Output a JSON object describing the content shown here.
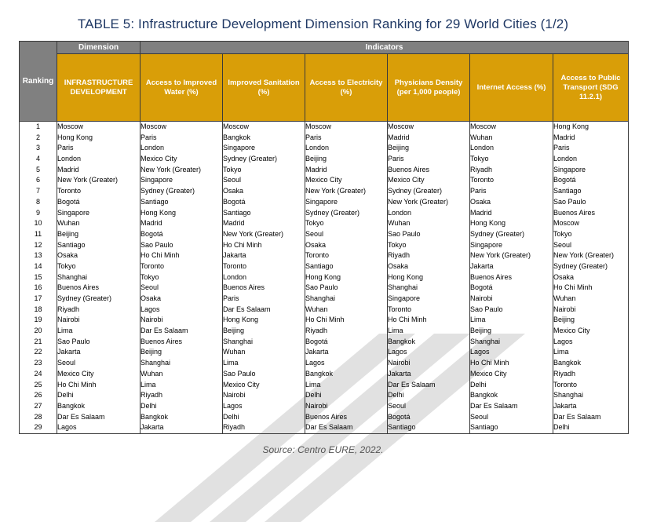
{
  "title": "TABLE 5: Infrastructure Development Dimension Ranking for 29 World Cities (1/2)",
  "header": {
    "ranking": "Ranking",
    "dimension": "Dimension",
    "indicators": "Indicators",
    "dimension_name": "INFRASTRUCTURE DEVELOPMENT",
    "columns": [
      "Access to Improved Water (%)",
      "Improved Sanitation (%)",
      "Access to Electricity (%)",
      "Physicians Density (per 1,000 people)",
      "Internet Access (%)",
      "Access to Public Transport (SDG 11.2.1)"
    ]
  },
  "ranks": [
    "1",
    "2",
    "3",
    "4",
    "5",
    "6",
    "7",
    "8",
    "9",
    "10",
    "11",
    "12",
    "13",
    "14",
    "15",
    "16",
    "17",
    "18",
    "19",
    "20",
    "21",
    "22",
    "23",
    "24",
    "25",
    "26",
    "27",
    "28",
    "29"
  ],
  "columns": [
    [
      "Moscow",
      "Hong Kong",
      "Paris",
      "London",
      "Madrid",
      "New York (Greater)",
      "Toronto",
      "Bogotá",
      "Singapore",
      "Wuhan",
      "Beijing",
      "Santiago",
      "Osaka",
      "Tokyo",
      "Shanghai",
      "Buenos Aires",
      "Sydney (Greater)",
      "Riyadh",
      "Nairobi",
      "Lima",
      "Sao Paulo",
      "Jakarta",
      "Seoul",
      "Mexico City",
      "Ho Chi Minh",
      "Delhi",
      "Bangkok",
      "Dar Es Salaam",
      "Lagos"
    ],
    [
      "Moscow",
      "Paris",
      "London",
      "Mexico City",
      "New York (Greater)",
      "Singapore",
      "Sydney (Greater)",
      "Santiago",
      "Hong Kong",
      "Madrid",
      "Bogotá",
      "Sao Paulo",
      "Ho Chi Minh",
      "Toronto",
      "Tokyo",
      "Seoul",
      "Osaka",
      "Lagos",
      "Nairobi",
      "Dar Es Salaam",
      "Buenos Aires",
      "Beijing",
      "Shanghai",
      "Wuhan",
      "Lima",
      "Riyadh",
      "Delhi",
      "Bangkok",
      "Jakarta"
    ],
    [
      "Moscow",
      "Bangkok",
      "Singapore",
      "Sydney (Greater)",
      "Tokyo",
      "Seoul",
      "Osaka",
      "Bogotá",
      "Santiago",
      "Madrid",
      "New York (Greater)",
      "Ho Chi Minh",
      "Jakarta",
      "Toronto",
      "London",
      "Buenos Aires",
      "Paris",
      "Dar Es Salaam",
      "Hong Kong",
      "Beijing",
      "Shanghai",
      "Wuhan",
      "Lima",
      "Sao Paulo",
      "Mexico City",
      "Nairobi",
      "Lagos",
      "Delhi",
      "Riyadh"
    ],
    [
      "Moscow",
      "Paris",
      "London",
      "Beijing",
      "Madrid",
      "Mexico City",
      "New York (Greater)",
      "Singapore",
      "Sydney (Greater)",
      "Tokyo",
      "Seoul",
      "Osaka",
      "Toronto",
      "Santiago",
      "Hong Kong",
      "Sao Paulo",
      "Shanghai",
      "Wuhan",
      "Ho Chi Minh",
      "Riyadh",
      "Bogotá",
      "Jakarta",
      "Lagos",
      "Bangkok",
      "Lima",
      "Delhi",
      "Nairobi",
      "Buenos Aires",
      "Dar Es Salaam"
    ],
    [
      "Moscow",
      "Madrid",
      "Beijing",
      "Paris",
      "Buenos Aires",
      "Mexico City",
      "Sydney (Greater)",
      "New York (Greater)",
      "London",
      "Wuhan",
      "Sao Paulo",
      "Tokyo",
      "Riyadh",
      "Osaka",
      "Hong Kong",
      "Shanghai",
      "Singapore",
      "Toronto",
      "Ho Chi Minh",
      "Lima",
      "Bangkok",
      "Lagos",
      "Nairobi",
      "Jakarta",
      "Dar Es Salaam",
      "Delhi",
      "Seoul",
      "Bogotá",
      "Santiago"
    ],
    [
      "Moscow",
      "Wuhan",
      "London",
      "Tokyo",
      "Riyadh",
      "Toronto",
      "Paris",
      "Osaka",
      "Madrid",
      "Hong Kong",
      "Sydney (Greater)",
      "Singapore",
      "New York (Greater)",
      "Jakarta",
      "Buenos Aires",
      "Bogotá",
      "Nairobi",
      "Sao Paulo",
      "Lima",
      "Beijing",
      "Shanghai",
      "Lagos",
      "Ho Chi Minh",
      "Mexico City",
      "Delhi",
      "Bangkok",
      "Dar Es Salaam",
      "Seoul",
      "Santiago"
    ],
    [
      "Hong Kong",
      "Madrid",
      "Paris",
      "London",
      "Singapore",
      "Bogotá",
      "Santiago",
      "Sao Paulo",
      "Buenos Aires",
      "Moscow",
      "Tokyo",
      "Seoul",
      "New York (Greater)",
      "Sydney (Greater)",
      "Osaka",
      "Ho Chi Minh",
      "Wuhan",
      "Nairobi",
      "Beijing",
      "Mexico City",
      "Lagos",
      "Lima",
      "Bangkok",
      "Riyadh",
      "Toronto",
      "Shanghai",
      "Jakarta",
      "Dar Es Salaam",
      "Delhi"
    ]
  ],
  "source": "Source: Centro EURE, 2022."
}
